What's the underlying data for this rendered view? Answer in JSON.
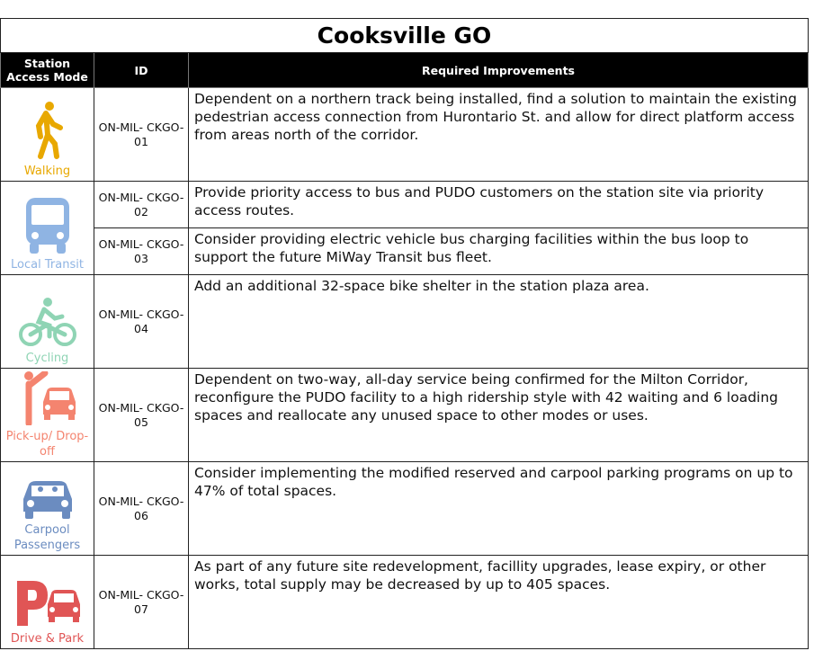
{
  "title": "Cooksville GO",
  "headers": {
    "mode": "Station Access Mode",
    "id": "ID",
    "improvements": "Required Improvements"
  },
  "modes": [
    {
      "label": "Walking",
      "icon": "walking-person-icon",
      "color": "#e8a800"
    },
    {
      "label": "Local Transit",
      "icon": "bus-icon",
      "color": "#8fb4e3"
    },
    {
      "label": "Cycling",
      "icon": "cyclist-icon",
      "color": "#8fd4b4"
    },
    {
      "label": "Pick-up/ Drop-off",
      "icon": "pickup-car-icon",
      "color": "#f4846f"
    },
    {
      "label": "Carpool Passengers",
      "icon": "carpool-car-icon",
      "color": "#6b8cc0"
    },
    {
      "label": "Drive & Park",
      "icon": "parking-car-icon",
      "color": "#e05555"
    }
  ],
  "rows": [
    {
      "id": "ON-MIL- CKGO-01",
      "text": "Dependent on a northern track being installed, find a solution to maintain the existing pedestrian access connection from Hurontario St. and allow for direct platform access from areas north of the corridor."
    },
    {
      "id": "ON-MIL- CKGO-02",
      "text": "Provide priority access to bus and PUDO customers on the station site via priority access routes."
    },
    {
      "id": "ON-MIL- CKGO-03",
      "text": "Consider providing electric vehicle bus charging facilities within the bus loop to support the future MiWay Transit bus fleet."
    },
    {
      "id": "ON-MIL- CKGO-04",
      "text": "Add an additional 32-space bike shelter in the station plaza area."
    },
    {
      "id": "ON-MIL- CKGO-05",
      "text": "Dependent on two-way, all-day service being confirmed for the Milton Corridor, reconfigure the PUDO facility to a high ridership style with 42 waiting and 6 loading spaces and reallocate any unused space to other modes or uses."
    },
    {
      "id": "ON-MIL- CKGO-06",
      "text": "Consider implementing the modified reserved and carpool parking programs on up to 47% of total spaces."
    },
    {
      "id": "ON-MIL- CKGO-07",
      "text": "As part of any future site redevelopment, facillity upgrades, lease expiry, or other works, total supply may be decreased by up to 405 spaces."
    }
  ]
}
